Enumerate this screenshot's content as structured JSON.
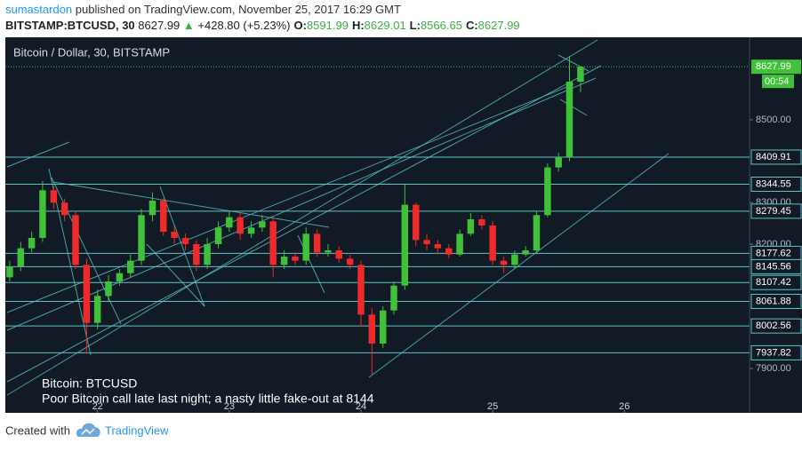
{
  "header": {
    "author": "sumastardon",
    "published": "published on TradingView.com, November 25, 2017 16:29 GMT",
    "symbol": "BITSTAMP:BTCUSD, 30",
    "last": "8627.99",
    "change": "+428.80 (+5.23%)",
    "ohlc": [
      {
        "label": "O:",
        "value": "8591.99"
      },
      {
        "label": "H:",
        "value": "8629.01"
      },
      {
        "label": "L:",
        "value": "8566.65"
      },
      {
        "label": "C:",
        "value": "8627.99"
      }
    ]
  },
  "chart_data": {
    "type": "candlestick",
    "title": "Bitcoin / Dollar, 30, BITSTAMP",
    "up_color": "#3fc13a",
    "down_color": "#ee2a2a",
    "background": "#121a25",
    "x": [
      21.333,
      21.417,
      21.5,
      21.583,
      21.667,
      21.75,
      21.833,
      21.917,
      22.0,
      22.083,
      22.167,
      22.25,
      22.333,
      22.417,
      22.5,
      22.583,
      22.667,
      22.75,
      22.833,
      22.917,
      23.0,
      23.083,
      23.167,
      23.25,
      23.333,
      23.417,
      23.5,
      23.583,
      23.667,
      23.75,
      23.833,
      23.917,
      24.0,
      24.083,
      24.167,
      24.25,
      24.333,
      24.417,
      24.5,
      24.583,
      24.667,
      24.75,
      24.833,
      24.917,
      25.0,
      25.083,
      25.167,
      25.25,
      25.333,
      25.417,
      25.5,
      25.583,
      25.667
    ],
    "open": [
      8120,
      8146,
      8190,
      8215,
      8330,
      8300,
      8270,
      8150,
      8010,
      8075,
      8110,
      8130,
      8160,
      8270,
      8305,
      8230,
      8215,
      8200,
      8150,
      8200,
      8240,
      8265,
      8225,
      8240,
      8255,
      8150,
      8170,
      8160,
      8225,
      8180,
      8185,
      8165,
      8150,
      8030,
      7960,
      8040,
      8100,
      8295,
      8210,
      8200,
      8190,
      8175,
      8225,
      8260,
      8245,
      8160,
      8150,
      8175,
      8185,
      8270,
      8385,
      8410,
      8591.99
    ],
    "high": [
      8160,
      8205,
      8230,
      8352,
      8340,
      8310,
      8280,
      8165,
      8090,
      8125,
      8140,
      8175,
      8285,
      8325,
      8310,
      8245,
      8225,
      8210,
      8215,
      8255,
      8280,
      8275,
      8255,
      8270,
      8265,
      8185,
      8180,
      8240,
      8235,
      8200,
      8195,
      8175,
      8160,
      8045,
      8050,
      8110,
      8345,
      8300,
      8225,
      8210,
      8200,
      8235,
      8275,
      8270,
      8255,
      8170,
      8185,
      8195,
      8280,
      8395,
      8420,
      8654,
      8629.01
    ],
    "low": [
      8110,
      8135,
      8180,
      8205,
      8285,
      8255,
      8140,
      7935,
      7995,
      8060,
      8100,
      8120,
      8150,
      8255,
      8220,
      8200,
      8185,
      8135,
      8140,
      8190,
      8230,
      8210,
      8215,
      8230,
      8120,
      8140,
      8150,
      8150,
      8170,
      8170,
      8155,
      8140,
      8000,
      7883,
      7950,
      8030,
      8090,
      8195,
      8185,
      8175,
      8165,
      8170,
      8220,
      8235,
      8150,
      8130,
      8140,
      8170,
      8180,
      8265,
      8375,
      8400,
      8566.65
    ],
    "close": [
      8146,
      8190,
      8215,
      8330,
      8300,
      8270,
      8150,
      8010,
      8075,
      8110,
      8130,
      8160,
      8270,
      8305,
      8230,
      8215,
      8200,
      8150,
      8200,
      8240,
      8265,
      8225,
      8240,
      8255,
      8150,
      8170,
      8160,
      8225,
      8180,
      8185,
      8165,
      8150,
      8030,
      7960,
      8040,
      8100,
      8295,
      8210,
      8200,
      8190,
      8175,
      8225,
      8260,
      8245,
      8160,
      8150,
      8175,
      8185,
      8270,
      8385,
      8410,
      8592,
      8627.99
    ],
    "xlim": [
      21.3,
      26.95
    ],
    "xticks": [
      22,
      23,
      24,
      25,
      26
    ],
    "ylim": [
      7793,
      8699
    ],
    "yticks": [
      {
        "value": 7900,
        "label": "7900.00"
      },
      {
        "value": 8200,
        "label": "8200.00"
      },
      {
        "value": 8300,
        "label": "8300.00"
      },
      {
        "value": 8500,
        "label": "8500.00"
      }
    ],
    "levels": [
      {
        "value": 8409.91,
        "label": "8409.91"
      },
      {
        "value": 8344.55,
        "label": "8344.55"
      },
      {
        "value": 8279.45,
        "label": "8279.45"
      },
      {
        "value": 8177.62,
        "label": "8177.62"
      },
      {
        "value": 8145.56,
        "label": "8145.56"
      },
      {
        "value": 8107.42,
        "label": "8107.42"
      },
      {
        "value": 8061.88,
        "label": "8061.88"
      },
      {
        "value": 8002.56,
        "label": "8002.56"
      },
      {
        "value": 7937.82,
        "label": "7937.82"
      }
    ],
    "last_price": {
      "value": 8627.99,
      "label": "8627.99"
    },
    "countdown": "00:54",
    "annotations": [
      "Bitcoin: BTCUSD",
      "Poor Bitcoin call late last night; a nasty little fake-out at 8144"
    ]
  },
  "footer": {
    "created": "Created with",
    "brand": "TradingView"
  }
}
